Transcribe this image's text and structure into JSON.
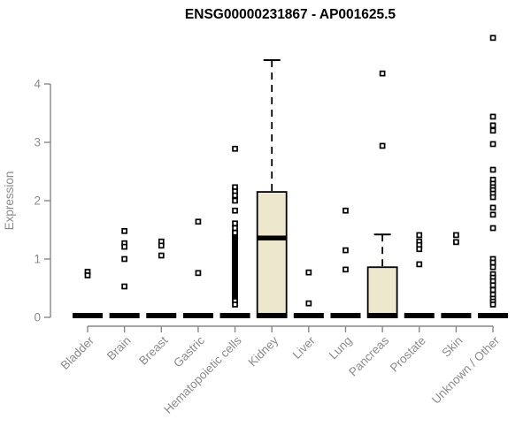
{
  "chart_data": {
    "type": "boxplot",
    "title": "ENSG00000231867 - AP001625.5",
    "ylabel": "Expression",
    "xlabel": "",
    "yticks": [
      0,
      1,
      2,
      3,
      4
    ],
    "ylim": [
      0,
      4.9
    ],
    "grid": false,
    "legend": "none",
    "colors": {
      "box_fill": "#EDE8CD",
      "box_stroke": "#000000",
      "axis": "#888888",
      "axis_text": "#8c8c8c",
      "title_text": "#000000"
    },
    "categories": [
      "Bladder",
      "Brain",
      "Breast",
      "Gastric",
      "Hematopoietic cells",
      "Kidney",
      "Liver",
      "Lung",
      "Pancreas",
      "Prostate",
      "Skin",
      "Unknown / Other"
    ],
    "groups": [
      {
        "name": "Bladder",
        "q1": 0,
        "median": 0,
        "q3": 0,
        "whisker_low": 0,
        "whisker_high": 0,
        "points": [
          0.78,
          0.72
        ]
      },
      {
        "name": "Brain",
        "q1": 0,
        "median": 0,
        "q3": 0,
        "whisker_low": 0,
        "whisker_high": 0,
        "points": [
          1.48,
          1.27,
          1.21,
          1.0,
          0.53
        ]
      },
      {
        "name": "Breast",
        "q1": 0,
        "median": 0,
        "q3": 0,
        "whisker_low": 0,
        "whisker_high": 0,
        "points": [
          1.3,
          1.23,
          1.06
        ]
      },
      {
        "name": "Gastric",
        "q1": 0,
        "median": 0,
        "q3": 0,
        "whisker_low": 0,
        "whisker_high": 0,
        "points": [
          1.64,
          0.76
        ]
      },
      {
        "name": "Hematopoietic cells",
        "q1": 0,
        "median": 0,
        "q3": 0,
        "whisker_low": 0,
        "whisker_high": 0,
        "points": [
          2.89,
          2.23,
          2.16,
          2.09,
          2.0,
          1.83,
          1.61,
          1.53,
          0.28,
          0.22
        ],
        "dense_strip": {
          "min": 0.33,
          "max": 1.45,
          "count": 60
        }
      },
      {
        "name": "Kidney",
        "q1": 0,
        "median": 1.36,
        "q3": 2.15,
        "whisker_low": 0,
        "whisker_high": 4.41,
        "points": []
      },
      {
        "name": "Liver",
        "q1": 0,
        "median": 0,
        "q3": 0,
        "whisker_low": 0,
        "whisker_high": 0,
        "points": [
          0.77,
          0.24
        ]
      },
      {
        "name": "Lung",
        "q1": 0,
        "median": 0,
        "q3": 0,
        "whisker_low": 0,
        "whisker_high": 0,
        "points": [
          1.83,
          1.15,
          0.82
        ]
      },
      {
        "name": "Pancreas",
        "q1": 0,
        "median": 0,
        "q3": 0.86,
        "whisker_low": 0,
        "whisker_high": 1.42,
        "points": [
          4.18,
          2.94
        ]
      },
      {
        "name": "Prostate",
        "q1": 0,
        "median": 0,
        "q3": 0,
        "whisker_low": 0,
        "whisker_high": 0,
        "points": [
          1.41,
          1.3,
          1.24,
          1.17,
          0.91
        ]
      },
      {
        "name": "Skin",
        "q1": 0,
        "median": 0,
        "q3": 0,
        "whisker_low": 0,
        "whisker_high": 0,
        "points": [
          1.41,
          1.29
        ]
      },
      {
        "name": "Unknown / Other",
        "q1": 0,
        "median": 0,
        "q3": 0,
        "whisker_low": 0,
        "whisker_high": 0,
        "points": [
          4.79,
          3.44,
          3.29,
          3.2,
          2.97,
          2.53,
          2.36,
          2.29,
          2.23,
          2.18,
          2.12,
          2.06,
          1.88,
          1.76,
          1.53,
          1.0,
          0.94,
          0.86,
          0.74,
          0.68,
          0.62,
          0.55,
          0.47,
          0.39,
          0.32,
          0.27,
          0.22
        ]
      }
    ]
  }
}
